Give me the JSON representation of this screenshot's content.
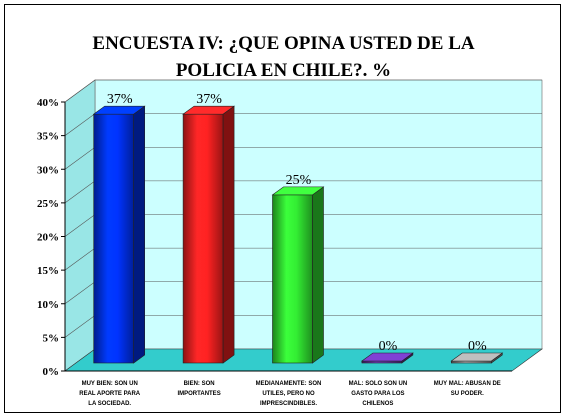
{
  "chart_data": {
    "type": "bar",
    "title": "ENCUESTA IV: ¿QUE OPINA USTED DE LA\nPOLICIA EN CHILE?. %",
    "categories": [
      [
        "MUY BIEN: SON UN",
        "REAL APORTE PARA",
        "LA SOCIEDAD."
      ],
      [
        "BIEN: SON",
        "IMPORTANTES"
      ],
      [
        "MEDIANAMENTE: SON",
        "UTILES, PERO NO",
        "IMPRESCINDIBLES."
      ],
      [
        "MAL: SOLO SON UN",
        "GASTO PARA LOS",
        "CHILENOS"
      ],
      [
        "MUY MAL: ABUSAN DE",
        "SU PODER."
      ]
    ],
    "values": [
      37,
      37,
      25,
      0,
      0
    ],
    "value_labels": [
      "37%",
      "37%",
      "25%",
      "0%",
      "0%"
    ],
    "ylim": [
      0,
      40
    ],
    "yticks": [
      0,
      5,
      10,
      15,
      20,
      25,
      30,
      35,
      40
    ],
    "ytick_labels": [
      "0%",
      "5%",
      "10%",
      "15%",
      "20%",
      "25%",
      "30%",
      "35%",
      "40%"
    ],
    "grid": true,
    "colors": {
      "wall": "#ccffff",
      "floor": "#33cccc",
      "bars": [
        "#0033ff",
        "#ff2222",
        "#33ee33",
        "#6633aa",
        "#999999"
      ]
    }
  }
}
